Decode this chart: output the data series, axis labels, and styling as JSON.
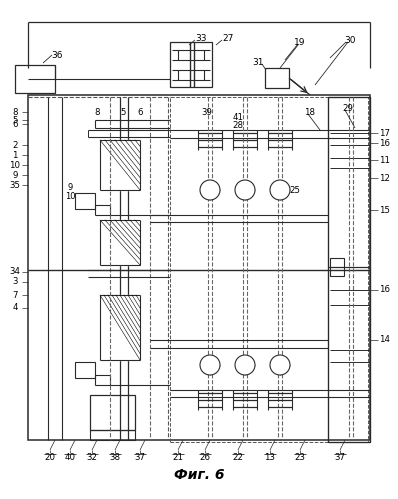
{
  "title": "Фиг. 6",
  "bg": "#ffffff",
  "fw": 3.98,
  "fh": 4.99,
  "dpi": 100,
  "lc": "#2a2a2a"
}
